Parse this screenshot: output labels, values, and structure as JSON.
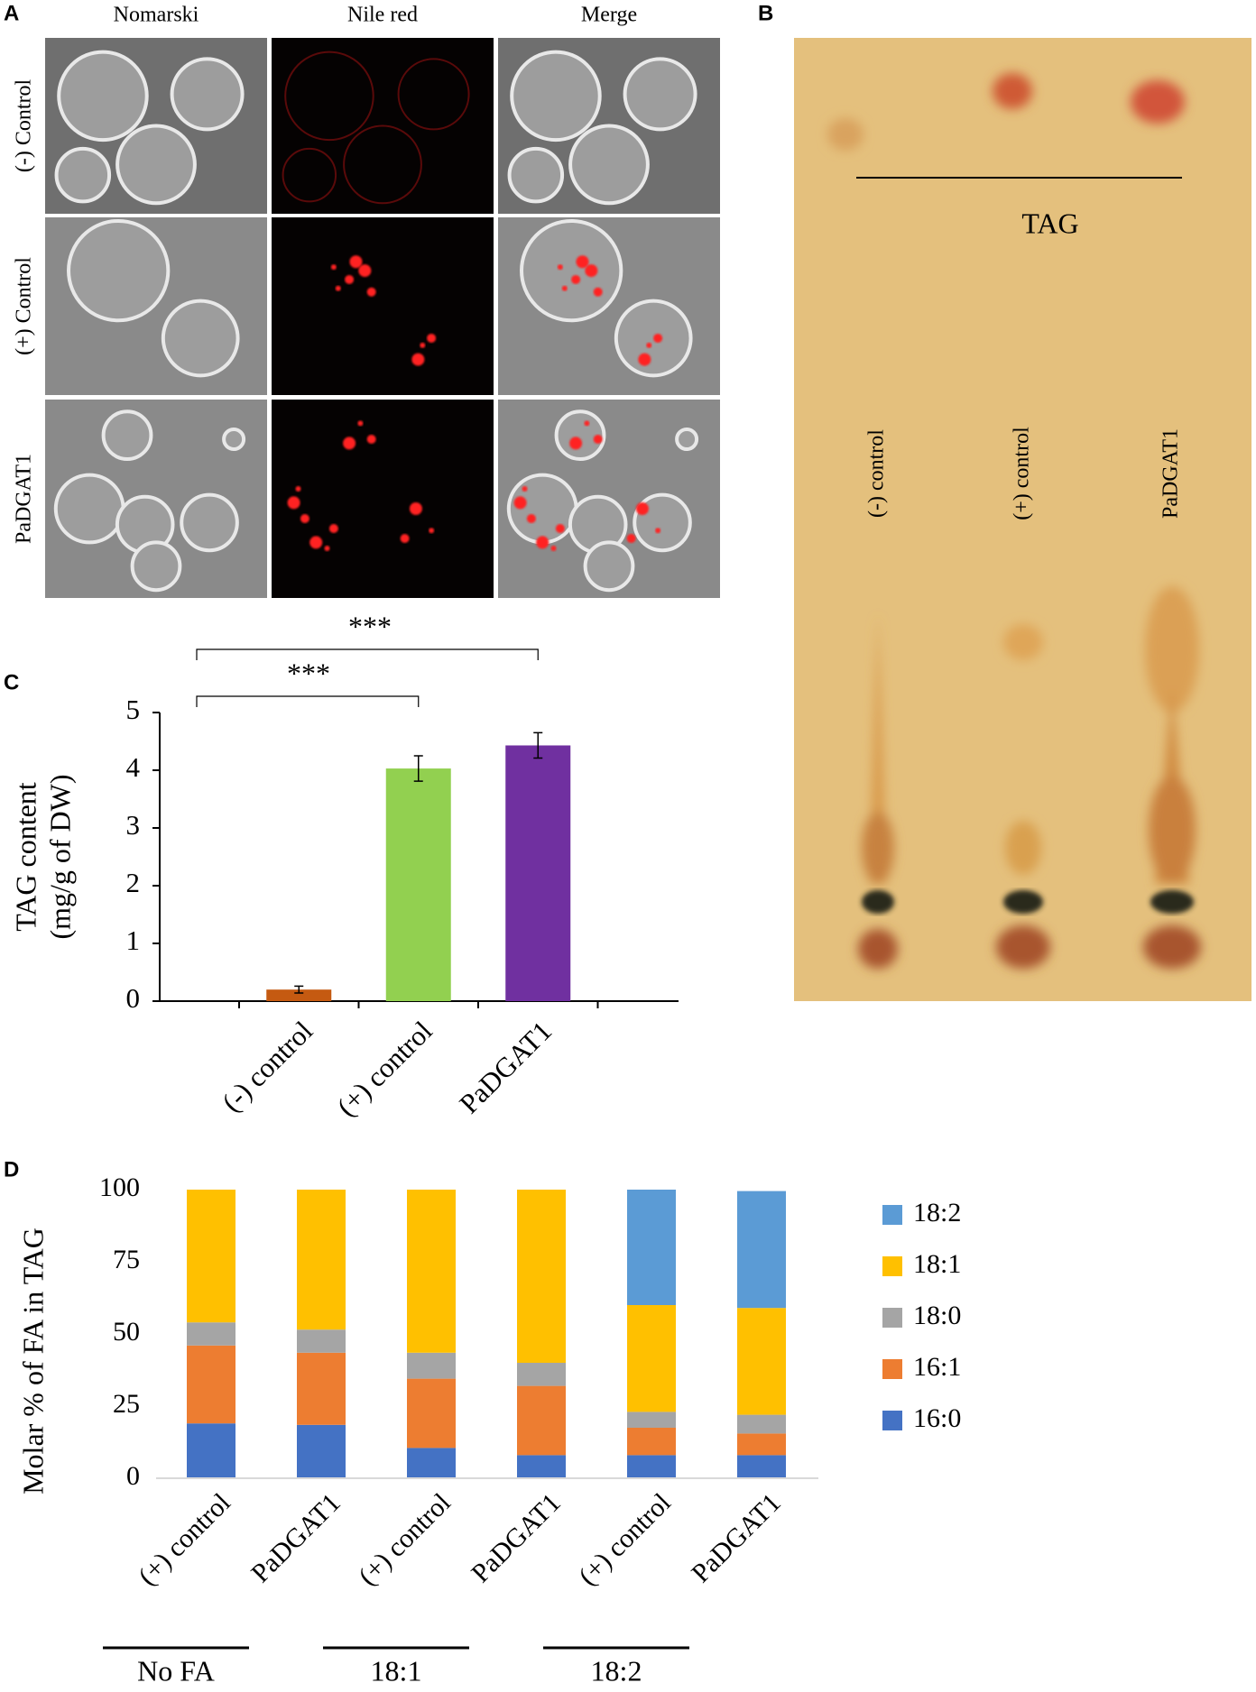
{
  "panels": {
    "labels": [
      "A",
      "B",
      "C",
      "D"
    ]
  },
  "microscopy": {
    "columns": [
      "Nomarski",
      "Nile red",
      "Merge"
    ],
    "rows": [
      "(-) Control",
      "(+) Control",
      "PaDGAT1"
    ]
  },
  "tlc": {
    "band_label": "TAG",
    "lanes": [
      "(-) control",
      "(+) control",
      "PaDGAT1"
    ]
  },
  "chart_data": [
    {
      "type": "bar",
      "categories": [
        "(-) control",
        "(+) control",
        "PaDGAT1"
      ],
      "values": [
        0.2,
        4.03,
        4.43
      ],
      "errors": [
        0.06,
        0.22,
        0.22
      ],
      "colors": [
        "#c55a11",
        "#92d050",
        "#7030a0"
      ],
      "ylabel": [
        "TAG content",
        "(mg/g of DW)"
      ],
      "ylim": [
        0,
        5
      ],
      "yticks": [
        0,
        1,
        2,
        3,
        4,
        5
      ],
      "significance": [
        "***",
        "***"
      ]
    },
    {
      "type": "stacked_bar",
      "categories": [
        "(+) control",
        "PaDGAT1",
        "(+) control",
        "PaDGAT1",
        "(+) control",
        "PaDGAT1"
      ],
      "groups": [
        "No FA",
        "18:1",
        "18:2"
      ],
      "series": [
        {
          "name": "16:0",
          "color": "#4472c4",
          "values": [
            19,
            18.5,
            10.5,
            8,
            8,
            8
          ]
        },
        {
          "name": "16:1",
          "color": "#ed7d31",
          "values": [
            27,
            25,
            24,
            24,
            9.5,
            7.5
          ]
        },
        {
          "name": "18:0",
          "color": "#a5a5a5",
          "values": [
            8,
            8,
            9,
            8,
            5.5,
            6.5
          ]
        },
        {
          "name": "18:1",
          "color": "#ffc000",
          "values": [
            46,
            48.5,
            56.5,
            60,
            37,
            37
          ]
        },
        {
          "name": "18:2",
          "color": "#5b9bd5",
          "values": [
            0,
            0,
            0,
            0,
            40,
            40.5
          ]
        }
      ],
      "ylabel": "Molar % of FA in TAG",
      "ylim": [
        0,
        100
      ],
      "yticks": [
        0,
        25,
        50,
        75,
        100
      ],
      "legend": "right"
    }
  ]
}
